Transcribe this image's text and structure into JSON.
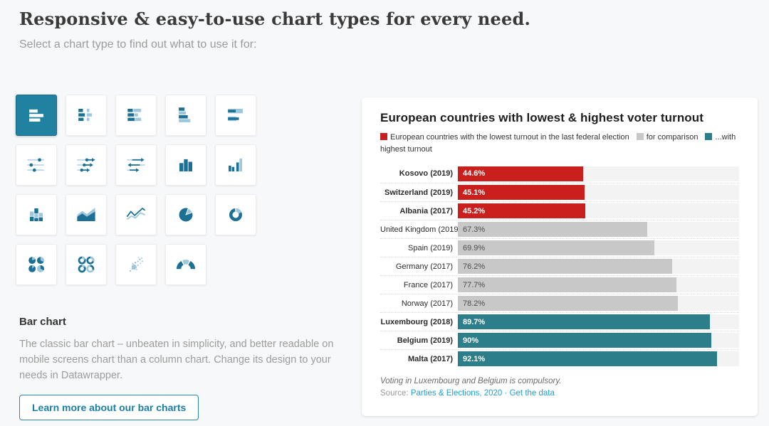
{
  "header": {
    "title": "Responsive & easy-to-use chart types for every need.",
    "subtitle": "Select a chart type to find out what to use it for:"
  },
  "chart_types": {
    "selected": "bar-chart",
    "icons": [
      "bar-chart",
      "split-bars",
      "stacked-bars",
      "grouped-bars",
      "bullet-bars",
      "dot-plot",
      "arrow-plot",
      "range-plot",
      "column-chart",
      "grouped-column-chart",
      "stacked-column-chart",
      "area-chart",
      "line-chart",
      "pie-chart",
      "donut-chart",
      "multiple-pies",
      "multiple-donuts",
      "scatter-plot",
      "election-donut"
    ]
  },
  "detail": {
    "heading": "Bar chart",
    "description": "The classic bar chart – unbeaten in simplicity, and better readable on mobile screens chart than a column chart. Change its design to your needs in Datawrapper.",
    "button_label": "Learn more about our bar charts"
  },
  "chart_card": {
    "title": "European countries with lowest & highest voter turnout",
    "legend": [
      {
        "label": "European countries with the lowest turnout in the last federal election",
        "color": "#c9201d"
      },
      {
        "label": "for comparison",
        "color": "#c8c8c8"
      },
      {
        "label": "...with highest turnout",
        "color": "#2c7f8a"
      }
    ],
    "footnote": "Voting in Luxembourg and Belgium is compulsory.",
    "source_prefix": "Source:",
    "source_link": "Parties & Elections, 2020",
    "separator": "·",
    "data_link": "Get the data"
  },
  "chart_data": {
    "type": "bar",
    "orientation": "horizontal",
    "title": "European countries with lowest & highest voter turnout",
    "categories": [
      "Kosovo (2019)",
      "Switzerland (2019)",
      "Albania (2017)",
      "United Kingdom (2019)",
      "Spain (2019)",
      "Germany (2017)",
      "France (2017)",
      "Norway (2017)",
      "Luxembourg (2018)",
      "Belgium (2019)",
      "Malta (2017)"
    ],
    "values": [
      44.6,
      45.1,
      45.2,
      67.3,
      69.9,
      76.2,
      77.7,
      78.2,
      89.7,
      90,
      92.1
    ],
    "value_labels": [
      "44.6%",
      "45.1%",
      "45.2%",
      "67.3%",
      "69.9%",
      "76.2%",
      "77.7%",
      "78.2%",
      "89.7%",
      "90%",
      "92.1%"
    ],
    "groups": [
      "lowest",
      "lowest",
      "lowest",
      "comparison",
      "comparison",
      "comparison",
      "comparison",
      "comparison",
      "highest",
      "highest",
      "highest"
    ],
    "group_colors": {
      "lowest": "#c9201d",
      "comparison": "#c8c8c8",
      "highest": "#2c7f8a"
    },
    "xlim": [
      0,
      100
    ],
    "unit": "%",
    "grid": false,
    "legend_position": "top"
  },
  "colors": {
    "accent_teal": "#2181a1",
    "link_blue": "#1d9fd4",
    "icon_dark": "#1c7093",
    "icon_light": "#9cc7dc"
  }
}
